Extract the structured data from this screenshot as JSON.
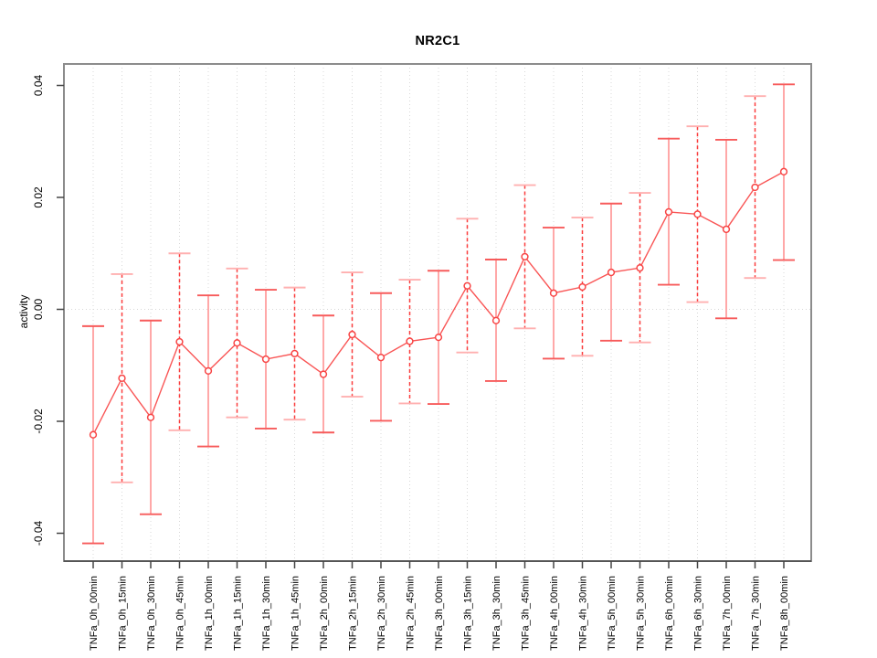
{
  "figure": {
    "title": "NR2C1",
    "ylabel": "activity"
  },
  "chart_data": {
    "type": "scatter",
    "subtype": "points-with-error-bars",
    "title": "NR2C1",
    "xlabel": "",
    "ylabel": "activity",
    "categories": [
      "TNFa_0h_00min",
      "TNFa_0h_15min",
      "TNFa_0h_30min",
      "TNFa_0h_45min",
      "TNFa_1h_00min",
      "TNFa_1h_15min",
      "TNFa_1h_30min",
      "TNFa_1h_45min",
      "TNFa_2h_00min",
      "TNFa_2h_15min",
      "TNFa_2h_30min",
      "TNFa_2h_45min",
      "TNFa_3h_00min",
      "TNFa_3h_15min",
      "TNFa_3h_30min",
      "TNFa_3h_45min",
      "TNFa_4h_00min",
      "TNFa_4h_30min",
      "TNFa_5h_00min",
      "TNFa_5h_30min",
      "TNFa_6h_00min",
      "TNFa_6h_30min",
      "TNFa_7h_00min",
      "TNFa_7h_30min",
      "TNFa_8h_00min"
    ],
    "series": [
      {
        "name": "activity",
        "values": [
          -0.0224,
          -0.0123,
          -0.0193,
          -0.0058,
          -0.011,
          -0.006,
          -0.0089,
          -0.0079,
          -0.0116,
          -0.0045,
          -0.0086,
          -0.0057,
          -0.005,
          0.0042,
          -0.002,
          0.0094,
          0.0029,
          0.004,
          0.0066,
          0.0074,
          0.0174,
          0.017,
          0.0143,
          0.0218,
          0.0246
        ],
        "error_upper": [
          -0.003,
          0.0063,
          -0.002,
          0.01,
          0.0025,
          0.0073,
          0.0035,
          0.0039,
          -0.0011,
          0.0066,
          0.0029,
          0.0053,
          0.0069,
          0.0162,
          0.0089,
          0.0222,
          0.0146,
          0.0164,
          0.0189,
          0.0208,
          0.0305,
          0.0327,
          0.0303,
          0.0381,
          0.0402
        ],
        "error_lower": [
          -0.0418,
          -0.0309,
          -0.0366,
          -0.0216,
          -0.0245,
          -0.0193,
          -0.0213,
          -0.0197,
          -0.022,
          -0.0156,
          -0.0199,
          -0.0168,
          -0.0169,
          -0.0077,
          -0.0128,
          -0.0034,
          -0.0088,
          -0.0083,
          -0.0056,
          -0.0059,
          0.0044,
          0.0013,
          -0.0016,
          0.0056,
          0.0088
        ]
      }
    ],
    "yticks": [
      -0.04,
      -0.02,
      0.0,
      0.02,
      0.04
    ],
    "ylim": [
      -0.0448,
      0.0438
    ],
    "grid": "vertical dotted gridline at every category; dotted horizontal line at y=0; no other horizontal gridlines",
    "legend": "none",
    "marker": "open-circle",
    "line_between_points": true,
    "colors": {
      "point_red": "#f84545",
      "connector_red": "#f95555",
      "bar_light_solid": "#ffa4a4",
      "bar_dark_dashed": "#fb3c3c",
      "cap_dark": "#f75b5b",
      "cap_light": "#ffb0b0",
      "grid_gray": "#d8d8d8",
      "frame_gray": "#8c8c8c",
      "axis_dark": "#454545",
      "text_black": "#000000"
    }
  }
}
